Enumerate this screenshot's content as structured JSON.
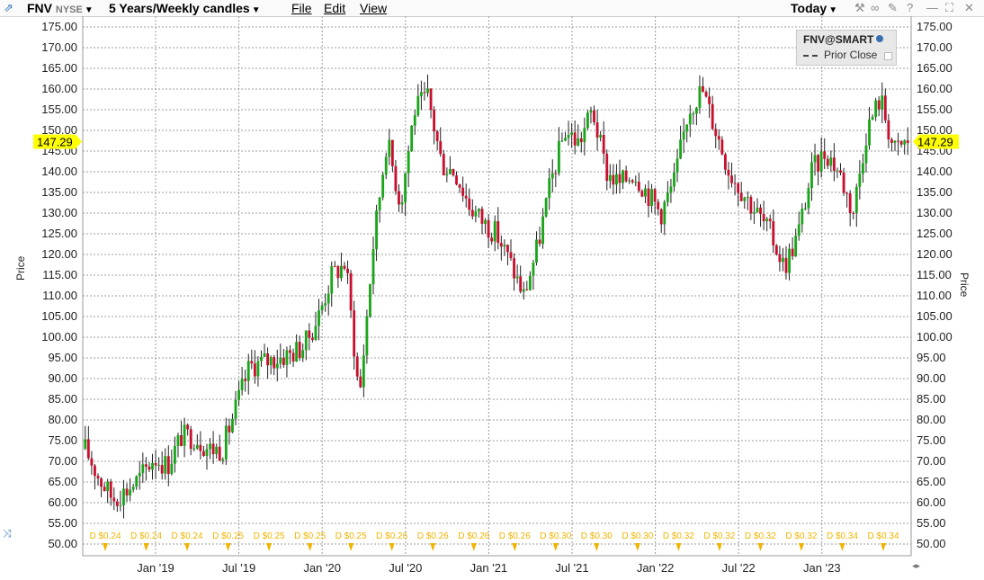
{
  "toolbar": {
    "symbol": "FNV",
    "exchange": "NYSE",
    "period": "5 Years/Weekly candles",
    "menus": [
      "File",
      "Edit",
      "View"
    ],
    "range": "Today"
  },
  "legend": {
    "title": "FNV@SMART",
    "prior_close": "Prior Close"
  },
  "last_price": "147.29",
  "colors": {
    "up": "#1aa51a",
    "down": "#c8102e",
    "price_tag": "#ffff00",
    "dividend": "#f0b400"
  },
  "chart_data": {
    "type": "candlestick",
    "ylabel": "Price",
    "ylim": [
      47.5,
      177.5
    ],
    "y_ticks": [
      "50.00",
      "55.00",
      "60.00",
      "65.00",
      "70.00",
      "75.00",
      "80.00",
      "85.00",
      "90.00",
      "95.00",
      "100.00",
      "105.00",
      "110.00",
      "115.00",
      "120.00",
      "125.00",
      "130.00",
      "135.00",
      "140.00",
      "145.00",
      "150.00",
      "155.00",
      "160.00",
      "165.00",
      "170.00",
      "175.00"
    ],
    "x_ticks": [
      "Jan '19",
      "Jul '19",
      "Jan '20",
      "Jul '20",
      "Jan '21",
      "Jul '21",
      "Jan '22",
      "Jul '22",
      "Jan '23"
    ],
    "grid": true,
    "close_path": [
      [
        "2018-07",
        73
      ],
      [
        "2018-08",
        66
      ],
      [
        "2018-09",
        61
      ],
      [
        "2018-10",
        63
      ],
      [
        "2018-11",
        66
      ],
      [
        "2018-12",
        71
      ],
      [
        "2019-01",
        69
      ],
      [
        "2019-02",
        76
      ],
      [
        "2019-03",
        76
      ],
      [
        "2019-04",
        73
      ],
      [
        "2019-05",
        73
      ],
      [
        "2019-06",
        83
      ],
      [
        "2019-07",
        93
      ],
      [
        "2019-08",
        94
      ],
      [
        "2019-09",
        95
      ],
      [
        "2019-10",
        96
      ],
      [
        "2019-11",
        98
      ],
      [
        "2019-12",
        105
      ],
      [
        "2020-01",
        115
      ],
      [
        "2020-02",
        118
      ],
      [
        "2020-03",
        85
      ],
      [
        "2020-04",
        122
      ],
      [
        "2020-05",
        148
      ],
      [
        "2020-06",
        132
      ],
      [
        "2020-07",
        155
      ],
      [
        "2020-08",
        158
      ],
      [
        "2020-09",
        142
      ],
      [
        "2020-10",
        140
      ],
      [
        "2020-11",
        132
      ],
      [
        "2020-12",
        128
      ],
      [
        "2021-01",
        125
      ],
      [
        "2021-02",
        118
      ],
      [
        "2021-03",
        110
      ],
      [
        "2021-04",
        122
      ],
      [
        "2021-05",
        138
      ],
      [
        "2021-06",
        150
      ],
      [
        "2021-07",
        147
      ],
      [
        "2021-08",
        155
      ],
      [
        "2021-09",
        140
      ],
      [
        "2021-10",
        137
      ],
      [
        "2021-11",
        140
      ],
      [
        "2021-12",
        135
      ],
      [
        "2022-01",
        130
      ],
      [
        "2022-02",
        138
      ],
      [
        "2022-03",
        155
      ],
      [
        "2022-04",
        160
      ],
      [
        "2022-05",
        150
      ],
      [
        "2022-06",
        140
      ],
      [
        "2022-07",
        135
      ],
      [
        "2022-08",
        130
      ],
      [
        "2022-09",
        125
      ],
      [
        "2022-10",
        117
      ],
      [
        "2022-11",
        125
      ],
      [
        "2022-12",
        140
      ],
      [
        "2023-01",
        145
      ],
      [
        "2023-02",
        140
      ],
      [
        "2023-03",
        130
      ],
      [
        "2023-04",
        150
      ],
      [
        "2023-05",
        158
      ],
      [
        "2023-06",
        145
      ],
      [
        "2023-07",
        147.29
      ]
    ]
  },
  "dividends": [
    {
      "label": "D $0.24"
    },
    {
      "label": "D $0.24"
    },
    {
      "label": "D $0.24"
    },
    {
      "label": "D $0.25"
    },
    {
      "label": "D $0.25"
    },
    {
      "label": "D $0.25"
    },
    {
      "label": "D $0.25"
    },
    {
      "label": "D $0.26"
    },
    {
      "label": "D $0.26"
    },
    {
      "label": "D $0.26"
    },
    {
      "label": "D $0.26"
    },
    {
      "label": "D $0.30"
    },
    {
      "label": "D $0.30"
    },
    {
      "label": "D $0.30"
    },
    {
      "label": "D $0.32"
    },
    {
      "label": "D $0.32"
    },
    {
      "label": "D $0.32"
    },
    {
      "label": "D $0.32"
    },
    {
      "label": "D $0.34"
    },
    {
      "label": "D $0.34"
    }
  ]
}
